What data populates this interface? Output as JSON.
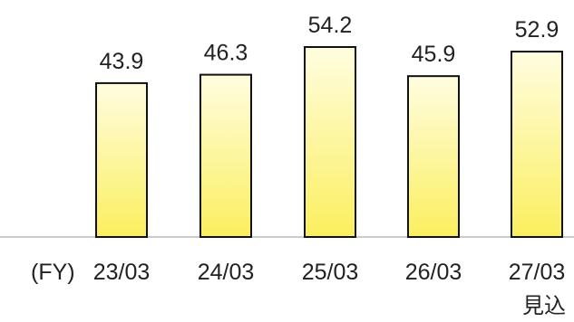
{
  "chart_data": {
    "type": "bar",
    "categories": [
      "23/03",
      "24/03",
      "25/03",
      "26/03",
      "27/03"
    ],
    "values": [
      43.9,
      46.3,
      54.2,
      45.9,
      52.9
    ],
    "value_labels": [
      "43.9",
      "46.3",
      "54.2",
      "45.9",
      "52.9"
    ],
    "x_prefix": "(FY)",
    "category_sublabels": [
      "",
      "",
      "",
      "",
      "見込"
    ],
    "title": "",
    "xlabel": "",
    "ylabel": "",
    "ylim": [
      0,
      54.2
    ],
    "grid": false,
    "legend": "none",
    "colors": {
      "bar_top": "#fffde0",
      "bar_bottom": "#fbef5e",
      "bar_border": "#111111",
      "axis": "#bbbbbb",
      "text": "#222222"
    }
  }
}
